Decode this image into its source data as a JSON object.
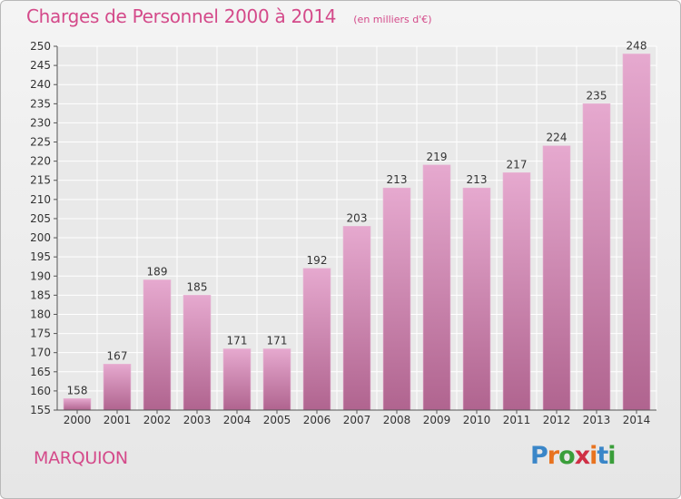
{
  "title": "Charges de Personnel 2000 à 2014",
  "subtitle": "(en milliers d'€)",
  "location": "MARQUION",
  "logo": {
    "letters": [
      "P",
      "r",
      "o",
      "x",
      "i",
      "t",
      "i"
    ],
    "colors": [
      "#3a86c8",
      "#e8731f",
      "#3a9e3a",
      "#cf2f45",
      "#e8731f",
      "#3a86c8",
      "#3a9e3a"
    ]
  },
  "colors": {
    "accent": "#d44a8a",
    "bar_top": "#e6a9cf",
    "bar_bottom": "#b0648f",
    "grid": "#ffffff"
  },
  "chart_data": {
    "type": "bar",
    "categories": [
      "2000",
      "2001",
      "2002",
      "2003",
      "2004",
      "2005",
      "2006",
      "2007",
      "2008",
      "2009",
      "2010",
      "2011",
      "2012",
      "2013",
      "2014"
    ],
    "values": [
      158,
      167,
      189,
      185,
      171,
      171,
      192,
      203,
      213,
      219,
      213,
      217,
      224,
      235,
      248
    ],
    "yticks": [
      155,
      160,
      165,
      170,
      175,
      180,
      185,
      190,
      195,
      200,
      205,
      210,
      215,
      220,
      225,
      230,
      235,
      240,
      245,
      250
    ],
    "ylim": [
      155,
      250
    ],
    "grid": true,
    "xlabel": "",
    "ylabel": ""
  }
}
